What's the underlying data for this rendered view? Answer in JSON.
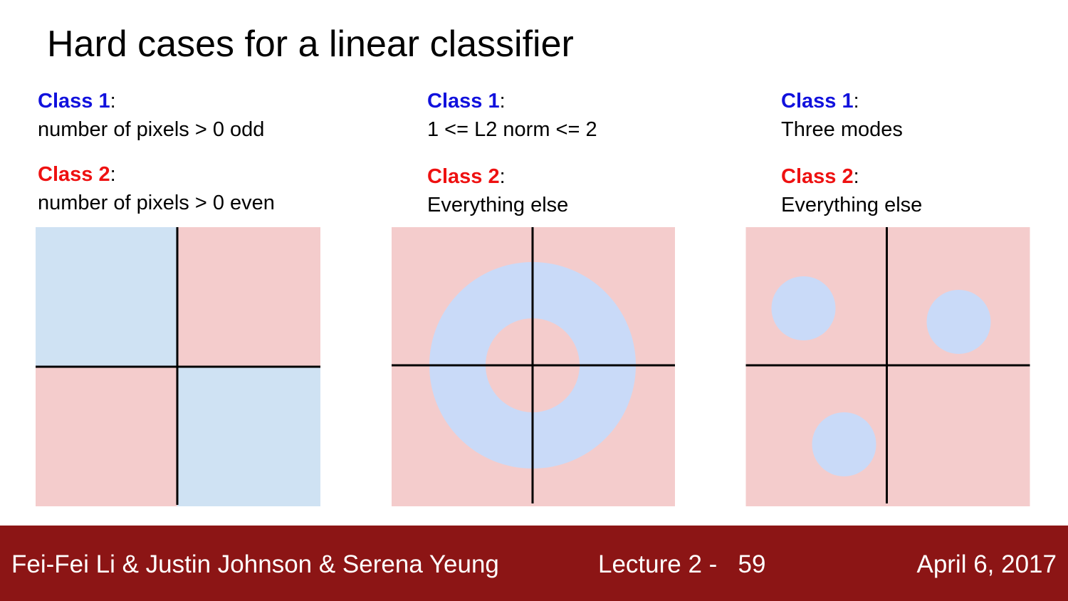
{
  "slide": {
    "title": "Hard cases for a linear classifier"
  },
  "panels": [
    {
      "class1_label": "Class 1",
      "class1_desc": "number of pixels > 0 odd",
      "class2_label": "Class 2",
      "class2_desc": "number of pixels > 0 even"
    },
    {
      "class1_label": "Class 1",
      "class1_desc": "1 <= L2 norm <= 2",
      "class2_label": "Class 2",
      "class2_desc": "Everything else"
    },
    {
      "class1_label": "Class 1",
      "class1_desc": "Three modes",
      "class2_label": "Class 2",
      "class2_desc": "Everything else"
    }
  ],
  "colors": {
    "class1_text": "#1111dd",
    "class2_text": "#ee1111",
    "class1_region": "#c9daf8",
    "class2_region": "#f4cccc",
    "footer_bg": "#8c1515"
  },
  "footer": {
    "authors": "Fei-Fei Li & Justin Johnson & Serena Yeung",
    "lecture": "Lecture 2 -   59",
    "date": "April 6, 2017"
  }
}
